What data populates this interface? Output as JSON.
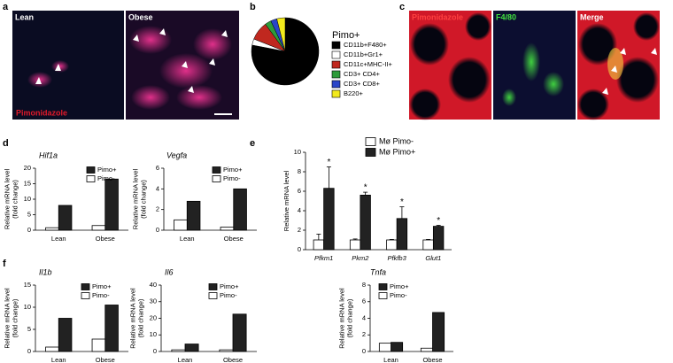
{
  "panels": [
    "a",
    "b",
    "c",
    "d",
    "e",
    "f"
  ],
  "images": {
    "a": [
      "Lean",
      "Obese",
      "Pimonidazole"
    ],
    "c": [
      "Pimonidazole",
      "F4/80",
      "Merge"
    ]
  },
  "chart_data": [
    {
      "type": "pie",
      "title": "Pimo+",
      "categories": [
        "CD11b+F480+",
        "CD11b+Gr1+",
        "CD11c+MHC-II+",
        "CD3+ CD4+",
        "CD3+ CD8+",
        "B220+"
      ],
      "values": [
        78,
        3,
        9,
        3,
        3,
        4
      ],
      "colors": [
        "#000000",
        "#ffffff",
        "#c0281f",
        "#2e9b3a",
        "#2a45c8",
        "#f2ea1c"
      ]
    },
    {
      "type": "bar",
      "title": "Hif1a",
      "ylabel": [
        "Relative mRNA level",
        "(fold change)"
      ],
      "categories": [
        "Lean",
        "Obese"
      ],
      "ylim": [
        0,
        20
      ],
      "yticks": [
        0,
        5,
        10,
        15,
        20
      ],
      "series": [
        {
          "name": "Pimo+",
          "color": "#222222",
          "values": [
            8,
            16.5
          ]
        },
        {
          "name": "Pimo-",
          "color": "#ffffff",
          "values": [
            0.8,
            1.5
          ]
        }
      ]
    },
    {
      "type": "bar",
      "title": "Vegfa",
      "ylabel": [
        "Relative mRNA level",
        "(fold change)"
      ],
      "categories": [
        "Lean",
        "Obese"
      ],
      "ylim": [
        0,
        6
      ],
      "yticks": [
        0,
        2,
        4,
        6
      ],
      "series": [
        {
          "name": "Pimo+",
          "color": "#222222",
          "values": [
            2.8,
            4.0
          ]
        },
        {
          "name": "Pimo-",
          "color": "#ffffff",
          "values": [
            1.0,
            0.3
          ]
        }
      ]
    },
    {
      "type": "bar",
      "ylabel": [
        "Relative mRNA level"
      ],
      "categories": [
        "Pfkm1",
        "Pkm2",
        "Pfkfb3",
        "Glut1"
      ],
      "ylim": [
        0,
        10
      ],
      "yticks": [
        0,
        2,
        4,
        6,
        8,
        10
      ],
      "series": [
        {
          "name": "Mø Pimo-",
          "color": "#ffffff",
          "values": [
            1.0,
            1.0,
            1.0,
            1.0
          ],
          "errors": [
            0.6,
            0.1,
            0.05,
            0.05
          ]
        },
        {
          "name": "Mø Pimo+",
          "color": "#222222",
          "values": [
            6.3,
            5.6,
            3.2,
            2.4
          ],
          "errors": [
            2.2,
            0.3,
            1.2,
            0.1
          ]
        }
      ],
      "annotations": [
        "*",
        "*",
        "*",
        "*"
      ]
    },
    {
      "type": "bar",
      "title": "Il1b",
      "ylabel": [
        "Relative mRNA level",
        "(fold change)"
      ],
      "categories": [
        "Lean",
        "Obese"
      ],
      "ylim": [
        0,
        15
      ],
      "yticks": [
        0,
        5,
        10,
        15
      ],
      "series": [
        {
          "name": "Pimo+",
          "color": "#222222",
          "values": [
            7.5,
            10.5
          ]
        },
        {
          "name": "Pimo-",
          "color": "#ffffff",
          "values": [
            1.0,
            2.8
          ]
        }
      ]
    },
    {
      "type": "bar",
      "title": "Il6",
      "ylabel": [
        "Relative mRNA level",
        "(fold change)"
      ],
      "categories": [
        "Lean",
        "Obese"
      ],
      "ylim": [
        0,
        40
      ],
      "yticks": [
        0,
        10,
        20,
        30,
        40
      ],
      "series": [
        {
          "name": "Pimo+",
          "color": "#222222",
          "values": [
            4.5,
            22.5
          ]
        },
        {
          "name": "Pimo-",
          "color": "#ffffff",
          "values": [
            1.0,
            1.0
          ]
        }
      ]
    },
    {
      "type": "bar",
      "title": "Tnfa",
      "ylabel": [
        "Relative mRNA level",
        "(fold change)"
      ],
      "categories": [
        "Lean",
        "Obese"
      ],
      "ylim": [
        0,
        8
      ],
      "yticks": [
        0,
        2,
        4,
        6,
        8
      ],
      "series": [
        {
          "name": "Pimo+",
          "color": "#222222",
          "values": [
            1.1,
            4.7
          ]
        },
        {
          "name": "Pimo-",
          "color": "#ffffff",
          "values": [
            1.0,
            0.4
          ]
        }
      ]
    }
  ]
}
